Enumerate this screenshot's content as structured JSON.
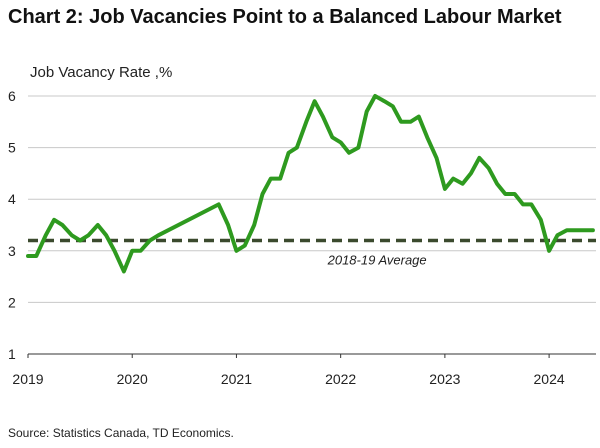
{
  "chart_data": {
    "type": "line",
    "title": "Chart 2: Job Vacancies Point to a Balanced Labour Market",
    "ylabel": "Job Vacancy Rate ,%",
    "xlabel": "",
    "ylim": [
      1,
      6
    ],
    "yticks": [
      "1",
      "2",
      "3",
      "4",
      "5",
      "6"
    ],
    "xlim": [
      2019.0,
      2024.45
    ],
    "xticks": [
      "2019",
      "2020",
      "2021",
      "2022",
      "2023",
      "2024"
    ],
    "grid": "horizontal",
    "colors": {
      "series": "#2e9a1f",
      "average": "#3b4a2e",
      "grid": "#c8c8c8",
      "axis": "#333333"
    },
    "series": [
      {
        "name": "Job Vacancy Rate",
        "x": [
          2019.0,
          2019.08,
          2019.17,
          2019.25,
          2019.33,
          2019.42,
          2019.5,
          2019.58,
          2019.67,
          2019.75,
          2019.83,
          2019.92,
          2020.0,
          2020.08,
          2020.17,
          2020.25,
          2020.83,
          2020.92,
          2021.0,
          2021.08,
          2021.17,
          2021.25,
          2021.33,
          2021.42,
          2021.5,
          2021.58,
          2021.67,
          2021.75,
          2021.83,
          2021.92,
          2022.0,
          2022.08,
          2022.17,
          2022.25,
          2022.33,
          2022.42,
          2022.5,
          2022.58,
          2022.67,
          2022.75,
          2022.83,
          2022.92,
          2023.0,
          2023.08,
          2023.17,
          2023.25,
          2023.33,
          2023.42,
          2023.5,
          2023.58,
          2023.67,
          2023.75,
          2023.83,
          2023.92,
          2024.0,
          2024.08,
          2024.17,
          2024.25,
          2024.33,
          2024.42
        ],
        "values": [
          2.9,
          2.9,
          3.3,
          3.6,
          3.5,
          3.3,
          3.2,
          3.3,
          3.5,
          3.3,
          3.0,
          2.6,
          3.0,
          3.0,
          3.2,
          3.3,
          3.9,
          3.5,
          3.0,
          3.1,
          3.5,
          4.1,
          4.4,
          4.4,
          4.9,
          5.0,
          5.5,
          5.9,
          5.6,
          5.2,
          5.1,
          4.9,
          5.0,
          5.7,
          6.0,
          5.9,
          5.8,
          5.5,
          5.5,
          5.6,
          5.2,
          4.8,
          4.2,
          4.4,
          4.3,
          4.5,
          4.8,
          4.6,
          4.3,
          4.1,
          4.1,
          3.9,
          3.9,
          3.6,
          3.0,
          3.3,
          3.4,
          3.4,
          3.4,
          3.4
        ]
      }
    ],
    "reference_line": {
      "name": "2018-19 Average",
      "value": 3.2
    },
    "source": "Source: Statistics Canada, TD Economics."
  }
}
